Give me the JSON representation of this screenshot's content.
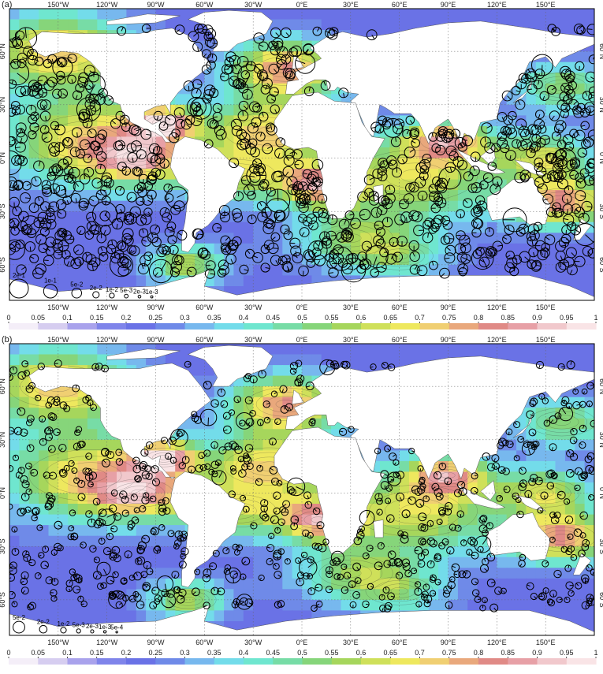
{
  "panels": [
    {
      "label": "(a)",
      "scale_legend": [
        "2e-1",
        "1e-1",
        "5e-2",
        "2e-2",
        "1e-2",
        "5e-3",
        "2e-3",
        "1e-3"
      ],
      "scale_radius_rel": [
        1.0,
        0.72,
        0.52,
        0.34,
        0.26,
        0.2,
        0.15,
        0.12
      ],
      "marker_size": 0.9
    },
    {
      "label": "(b)",
      "scale_legend": [
        "5e-2",
        "2e-2",
        "1e-2",
        "5e-3",
        "2e-3",
        "1e-3",
        "5e-4"
      ],
      "scale_radius_rel": [
        0.62,
        0.4,
        0.3,
        0.22,
        0.17,
        0.13,
        0.1
      ],
      "marker_size": 0.55
    }
  ],
  "lon_labels": [
    "150°W",
    "120°W",
    "90°W",
    "60°W",
    "30°W",
    "0°E",
    "30°E",
    "60°E",
    "90°E",
    "120°E",
    "150°E"
  ],
  "lat_labels": [
    "60°N",
    "30°N",
    "0°N",
    "30°S",
    "60°S"
  ],
  "colorbar": {
    "ticks": [
      "0",
      "0.05",
      "0.1",
      "0.15",
      "0.2",
      "0.25",
      "0.3",
      "0.35",
      "0.4",
      "0.45",
      "0.5",
      "0.55",
      "0.6",
      "0.65",
      "0.7",
      "0.75",
      "0.8",
      "0.85",
      "0.9",
      "0.95",
      "1"
    ],
    "range": [
      0,
      1
    ],
    "colors": [
      "#f4eef8",
      "#d6cdf0",
      "#a9a2ec",
      "#7f84ea",
      "#6a72e6",
      "#6f8ae8",
      "#77b8ee",
      "#73dcea",
      "#6fe6cf",
      "#77dca6",
      "#86d57a",
      "#a6d65c",
      "#cfe05a",
      "#eee85e",
      "#f0cf72",
      "#e9a87c",
      "#e08a86",
      "#e7a0a6",
      "#f1c8cc",
      "#f9e4e6"
    ]
  },
  "land_color": "#ffffff",
  "ocean_base": "#8f95ec"
}
